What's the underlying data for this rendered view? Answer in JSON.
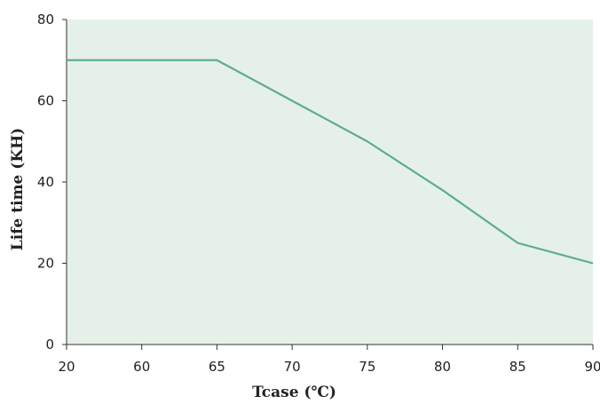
{
  "chart_data": {
    "type": "line",
    "title": "",
    "xlabel": "Tcase (℃)",
    "ylabel": "Life time (KH)",
    "x_ticks": [
      "20",
      "60",
      "65",
      "70",
      "75",
      "80",
      "85",
      "90"
    ],
    "y_ticks": [
      "0",
      "20",
      "40",
      "60",
      "80"
    ],
    "ylim": [
      0,
      80
    ],
    "grid": false,
    "legend": "none",
    "series": [
      {
        "points": [
          {
            "x": "20",
            "y": 70
          },
          {
            "x": "60",
            "y": 70
          },
          {
            "x": "65",
            "y": 70
          },
          {
            "x": "70",
            "y": 60
          },
          {
            "x": "75",
            "y": 50
          },
          {
            "x": "80",
            "y": 38
          },
          {
            "x": "85",
            "y": 25
          },
          {
            "x": "90",
            "y": 20
          }
        ]
      }
    ],
    "colors": {
      "plot_background": "#e5f1e8",
      "line": "#5eac8f",
      "axis": "#333333"
    }
  }
}
